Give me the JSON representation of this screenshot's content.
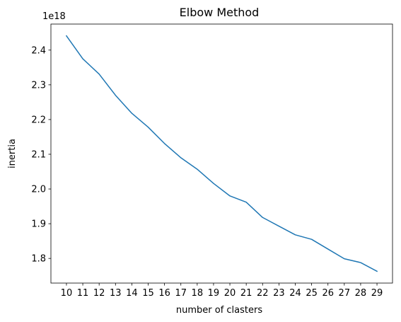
{
  "chart_data": {
    "type": "line",
    "title": "Elbow Method",
    "xlabel": "number of clasters",
    "ylabel": "inertia",
    "y_offset_label": "1e18",
    "x": [
      10,
      11,
      12,
      13,
      14,
      15,
      16,
      17,
      18,
      19,
      20,
      21,
      22,
      23,
      24,
      25,
      26,
      27,
      28,
      29
    ],
    "series": [
      {
        "color": "#1f77b4",
        "values": [
          2.441,
          2.375,
          2.331,
          2.27,
          2.218,
          2.178,
          2.131,
          2.09,
          2.057,
          2.016,
          1.98,
          1.962,
          1.918,
          1.893,
          1.868,
          1.855,
          1.827,
          1.799,
          1.788,
          1.763
        ]
      }
    ],
    "x_ticks": [
      "10",
      "11",
      "12",
      "13",
      "14",
      "15",
      "16",
      "17",
      "18",
      "19",
      "20",
      "21",
      "22",
      "23",
      "24",
      "25",
      "26",
      "27",
      "28",
      "29"
    ],
    "y_ticks": [
      1.8,
      1.9,
      2.0,
      2.1,
      2.2,
      2.3,
      2.4
    ],
    "y_tick_labels": [
      "1.8",
      "1.9",
      "2.0",
      "2.1",
      "2.2",
      "2.3",
      "2.4"
    ],
    "xlim": [
      9.05,
      29.95
    ],
    "ylim": [
      1.729,
      2.475
    ],
    "grid": false,
    "legend": "none"
  }
}
